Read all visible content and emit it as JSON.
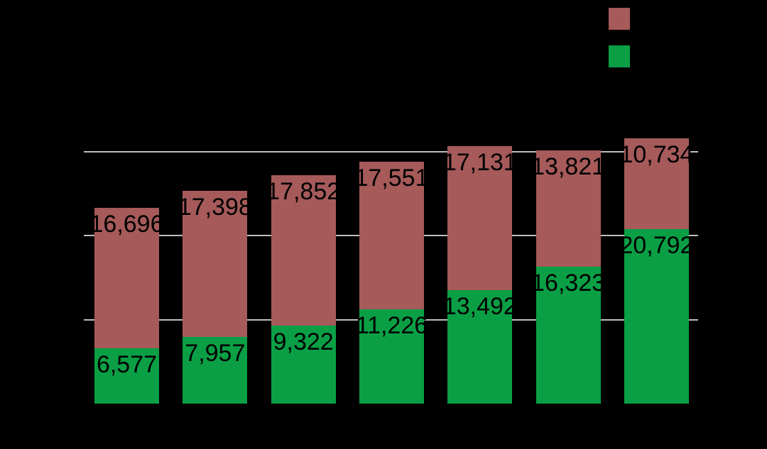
{
  "chart_data": {
    "type": "bar",
    "stacked": true,
    "background_color": "#000000",
    "grid_color": "#BEBEBE",
    "label_color": "#000000",
    "num_bars": 7,
    "series": [
      {
        "name": "green-bottom-segment",
        "color": "#0A9F45",
        "values": [
          6577,
          7957,
          9322,
          11226,
          13492,
          16323,
          20792
        ],
        "labels": [
          "6,577",
          "7,957",
          "9,322",
          "11,226",
          "13,492",
          "16,323",
          "20,792"
        ]
      },
      {
        "name": "red-top-segment",
        "color": "#A65A5A",
        "values": [
          16696,
          17398,
          17852,
          17551,
          17131,
          13821,
          10734
        ],
        "labels": [
          "16,696",
          "17,398",
          "17,852",
          "17,551",
          "17,131",
          "13,821",
          "10,734"
        ]
      }
    ],
    "totals": [
      23273,
      25355,
      27174,
      28777,
      30623,
      30144,
      31526
    ],
    "gridline_values": [
      10000,
      20000,
      30000
    ],
    "ylim": [
      0,
      32000
    ],
    "grid_visible": true,
    "axis_tick_labels_visible": false,
    "legend_position": "top-right"
  },
  "legend": {
    "items": [
      {
        "swatch_color": "#A65A5A"
      },
      {
        "swatch_color": "#0A9F45"
      }
    ]
  }
}
